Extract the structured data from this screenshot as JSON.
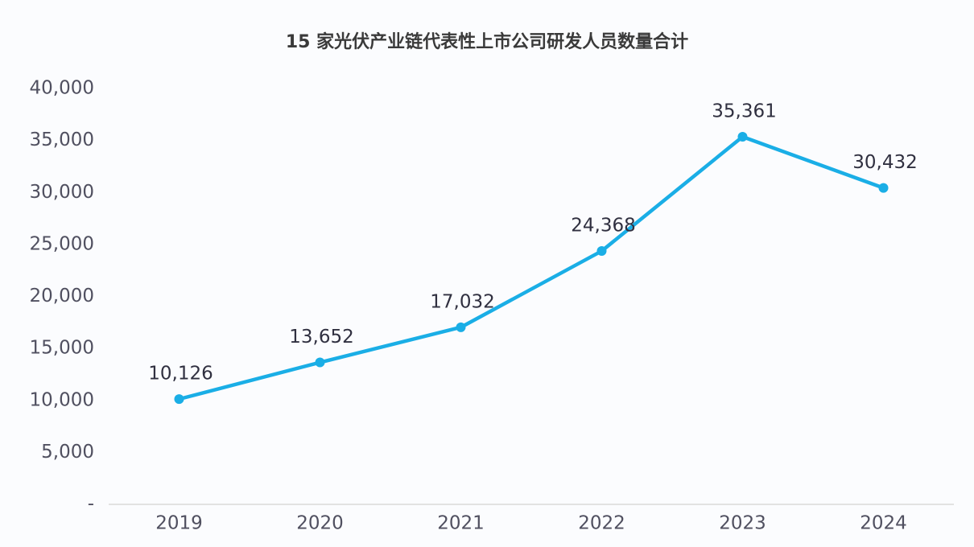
{
  "chart_data": {
    "type": "line",
    "title": "15 家光伏产业链代表性上市公司研发人员数量合计",
    "categories": [
      "2019",
      "2020",
      "2021",
      "2022",
      "2023",
      "2024"
    ],
    "values": [
      10126,
      13652,
      17032,
      24368,
      35361,
      30432
    ],
    "value_labels": [
      "10,126",
      "13,652",
      "17,032",
      "24,368",
      "35,361",
      "30,432"
    ],
    "color": "#1aaee6",
    "ylim": [
      0,
      40000
    ],
    "yticks": [
      {
        "value": 0,
        "label": "-"
      },
      {
        "value": 5000,
        "label": "5,000"
      },
      {
        "value": 10000,
        "label": "10,000"
      },
      {
        "value": 15000,
        "label": "15,000"
      },
      {
        "value": 20000,
        "label": "20,000"
      },
      {
        "value": 25000,
        "label": "25,000"
      },
      {
        "value": 30000,
        "label": "30,000"
      },
      {
        "value": 35000,
        "label": "35,000"
      },
      {
        "value": 40000,
        "label": "40,000"
      }
    ],
    "grid": false
  }
}
